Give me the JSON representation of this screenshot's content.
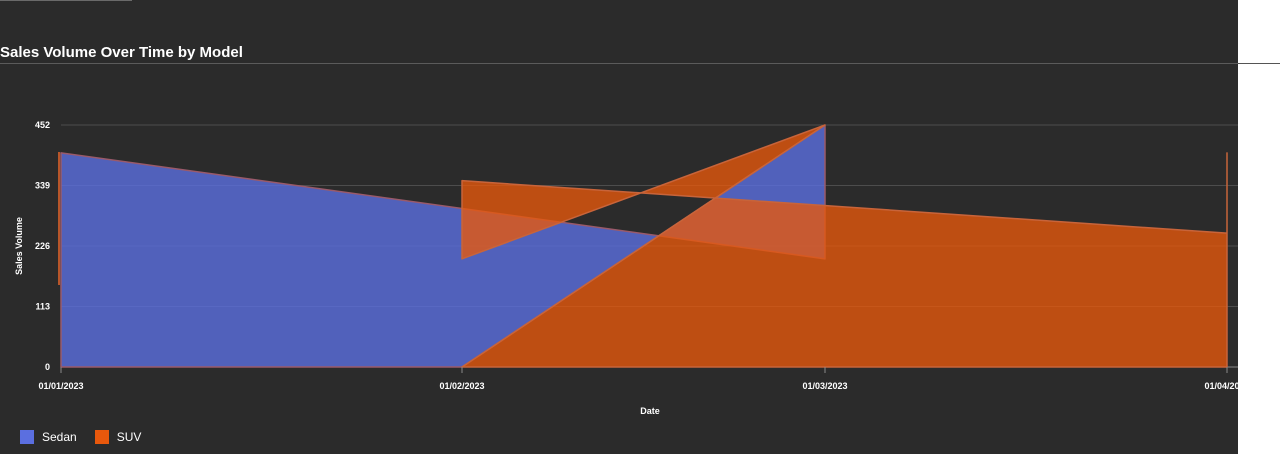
{
  "page": {
    "title": "Sales Volume Over Time by Model"
  },
  "chart_data": {
    "type": "area",
    "title": "Sales Volume Over Time by Model",
    "xlabel": "Date",
    "ylabel": "Sales Volume",
    "x_tick_labels": [
      "01/01/2023",
      "01/02/2023",
      "01/03/2023",
      "01/04/2023"
    ],
    "y_ticks": [
      0,
      113,
      226,
      339,
      452
    ],
    "ylim": [
      0,
      452
    ],
    "grid": true,
    "legend_position": "bottom-left",
    "series": [
      {
        "name": "Sedan",
        "color": "#5b6fe0",
        "points": [
          {
            "x": "01/01/2023",
            "y": 400
          },
          {
            "x": "01/03/2023",
            "y": 202
          },
          {
            "x": "01/03/2023",
            "y": 452
          },
          {
            "x": "01/02/2023",
            "y": 0
          },
          {
            "x": "01/01/2023",
            "y": 0
          }
        ]
      },
      {
        "name": "SUV",
        "color": "#e8580c",
        "points": [
          {
            "x": "01/02/2023",
            "y": 348
          },
          {
            "x": "01/04/2023",
            "y": 250
          },
          {
            "x": "01/04/2023",
            "y": 400
          },
          {
            "x": "01/04/2023",
            "y": 0
          },
          {
            "x": "01/02/2023",
            "y": 0
          },
          {
            "x": "01/03/2023",
            "y": 452
          },
          {
            "x": "01/02/2023",
            "y": 202
          }
        ]
      }
    ]
  }
}
